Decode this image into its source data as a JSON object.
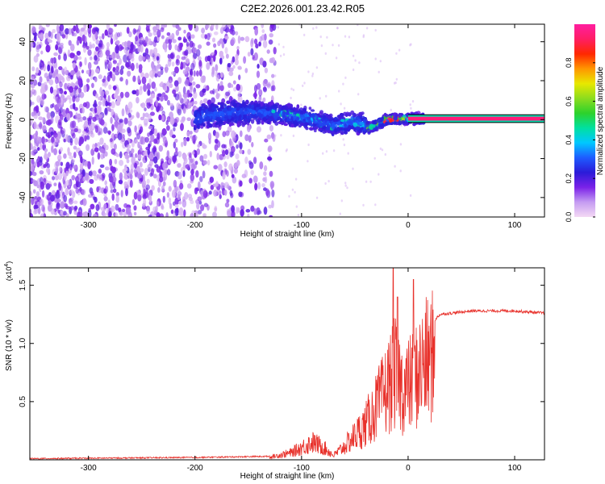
{
  "figure": {
    "title": "C2E2.2026.001.23.42.R05"
  },
  "chart_data": [
    {
      "type": "heatmap",
      "name": "spectrogram",
      "xlabel": "Height of straight line (km)",
      "ylabel": "Frequency (Hz)",
      "xlim": [
        -355,
        128
      ],
      "ylim": [
        -50,
        49
      ],
      "x_ticks": [
        -300,
        -200,
        -100,
        0,
        100
      ],
      "x_tick_labels": [
        "-300",
        "-200",
        "-100",
        "0",
        "100"
      ],
      "y_ticks": [
        -40,
        -20,
        0,
        20,
        40
      ],
      "y_tick_labels": [
        "-40",
        "-20",
        "0",
        "20",
        "40"
      ],
      "colorbar": {
        "label": "Normalized spectral amplitude",
        "range": [
          0.0,
          1.0
        ],
        "ticks": [
          0.0,
          0.2,
          0.4,
          0.6,
          0.8
        ],
        "tick_labels": [
          "0.0",
          "0.2",
          "0.4",
          "0.6",
          "0.8"
        ],
        "colors": [
          "#f4d9f4",
          "#c59cf2",
          "#7a22e8",
          "#2b1bd8",
          "#1e5cff",
          "#00c8ff",
          "#00e0a0",
          "#2cd22c",
          "#8cdc1e",
          "#e8e800",
          "#ff9600",
          "#ff2800",
          "#ff1e64",
          "#ff1ea0"
        ]
      },
      "ridge": {
        "description_points_km_hz": [
          [
            -195,
            2
          ],
          [
            -150,
            4
          ],
          [
            -120,
            3
          ],
          [
            -90,
            0
          ],
          [
            -70,
            -3
          ],
          [
            -50,
            -1
          ],
          [
            -35,
            -4
          ],
          [
            -20,
            0
          ],
          [
            0,
            0.5
          ],
          [
            128,
            0.5
          ]
        ]
      }
    },
    {
      "type": "line",
      "name": "snr",
      "xlabel": "Height of straight line (km)",
      "ylabel": "SNR (10 * v/v)",
      "y_scale_label": "(x10",
      "y_scale_exponent": "4",
      "xlim": [
        -355,
        128
      ],
      "ylim": [
        0,
        1.65
      ],
      "x_ticks": [
        -300,
        -200,
        -100,
        0,
        100
      ],
      "x_tick_labels": [
        "-300",
        "-200",
        "-100",
        "0",
        "100"
      ],
      "y_ticks": [
        0.5,
        1.0,
        1.5
      ],
      "y_tick_labels": [
        "0.5",
        "1.0",
        "1.5"
      ],
      "series": [
        {
          "name": "SNR",
          "color": "#e8322c",
          "envelope": [
            [
              -355,
              0.01
            ],
            [
              -200,
              0.02
            ],
            [
              -130,
              0.03
            ],
            [
              -110,
              0.08
            ],
            [
              -90,
              0.2
            ],
            [
              -80,
              0.15
            ],
            [
              -70,
              0.05
            ],
            [
              -60,
              0.15
            ],
            [
              -40,
              0.4
            ],
            [
              -25,
              0.7
            ],
            [
              -12,
              1.0
            ],
            [
              -5,
              0.8
            ],
            [
              5,
              0.9
            ],
            [
              15,
              1.1
            ],
            [
              30,
              1.25
            ],
            [
              60,
              1.28
            ],
            [
              100,
              1.28
            ],
            [
              128,
              1.26
            ]
          ],
          "spikes": [
            [
              -14,
              1.65
            ],
            [
              -10,
              1.4
            ],
            [
              5,
              1.55
            ]
          ]
        }
      ]
    }
  ]
}
